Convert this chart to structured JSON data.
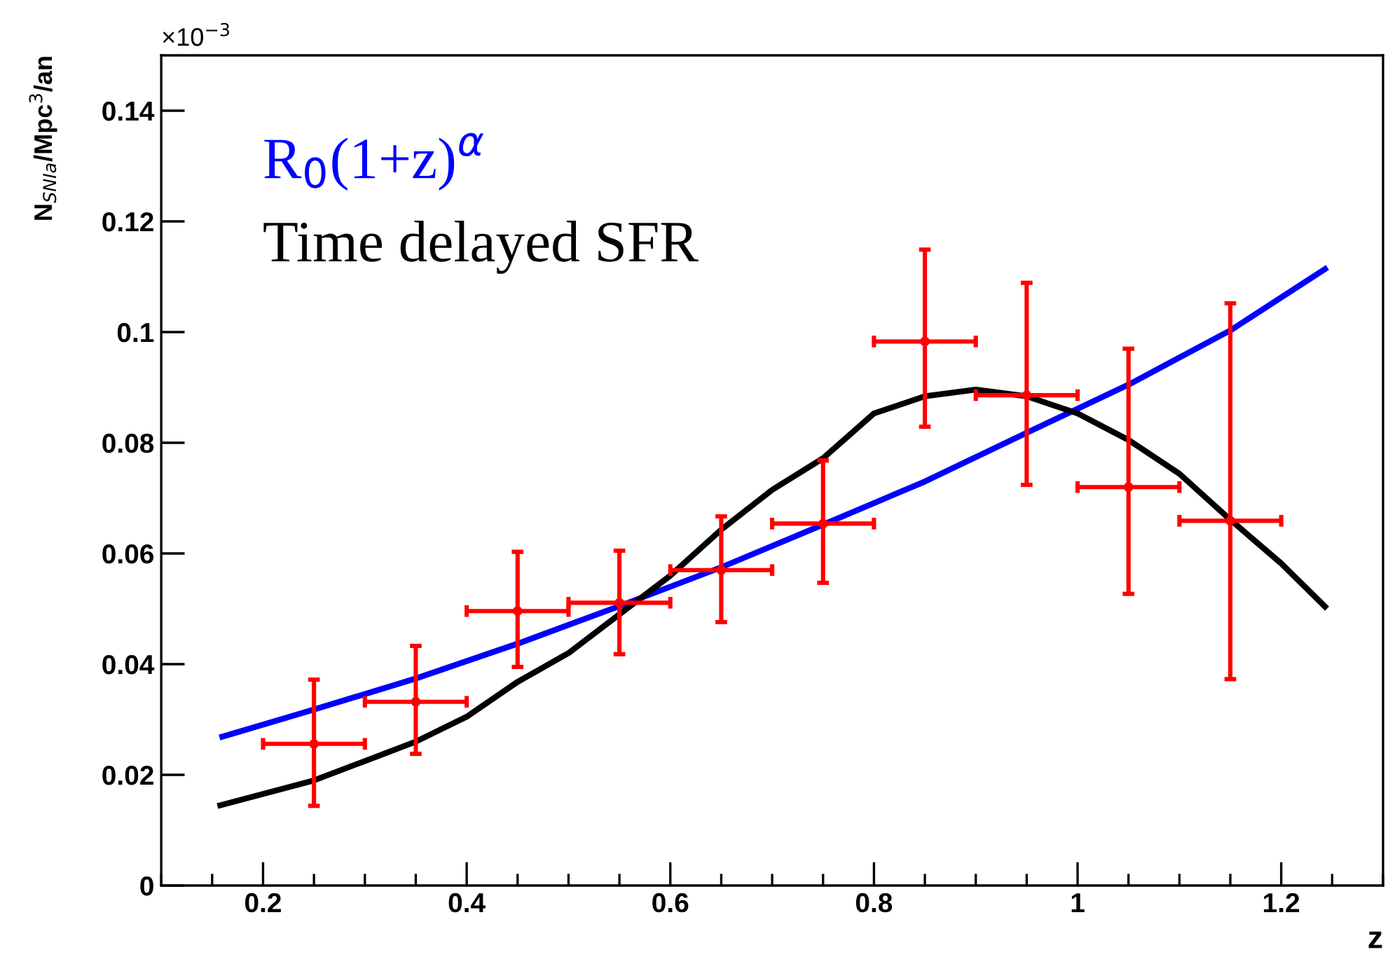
{
  "chart_data": {
    "type": "line",
    "xlabel": "z",
    "ylabel": "N$_{SNIa}$/Mpc$^{3}$/an",
    "xlim": [
      0.1,
      1.3
    ],
    "ylim": [
      0,
      0.15
    ],
    "xticks": [
      0.2,
      0.4,
      0.6,
      0.8,
      1,
      1.2
    ],
    "yticks": [
      0,
      0.02,
      0.04,
      0.06,
      0.08,
      0.1,
      0.12,
      0.14
    ],
    "grid": false,
    "legend": "top left",
    "marker": "none",
    "line_style": "solid",
    "annotations": [
      "×10$^{−3}$"
    ],
    "series": [
      {
        "name": "R$_{0}$(1+z)$^{α}$",
        "color": "#0000ff",
        "x": [
          0.16,
          0.25,
          0.35,
          0.45,
          0.55,
          0.65,
          0.75,
          0.85,
          0.95,
          1.05,
          1.15,
          1.243
        ],
        "values": [
          0.0269,
          0.0318,
          0.0374,
          0.0437,
          0.0505,
          0.0575,
          0.0652,
          0.073,
          0.0818,
          0.0905,
          0.1003,
          0.1114
        ]
      },
      {
        "name": "Time delayed SFR",
        "color": "#000000",
        "x": [
          0.158,
          0.25,
          0.3,
          0.35,
          0.4,
          0.45,
          0.5,
          0.55,
          0.6,
          0.65,
          0.7,
          0.75,
          0.8,
          0.85,
          0.9,
          0.95,
          1.0,
          1.05,
          1.1,
          1.15,
          1.2,
          1.243
        ],
        "values": [
          0.0145,
          0.019,
          0.0225,
          0.026,
          0.0305,
          0.0368,
          0.042,
          0.049,
          0.056,
          0.0643,
          0.0715,
          0.0772,
          0.0853,
          0.0884,
          0.0896,
          0.0884,
          0.0853,
          0.0805,
          0.0744,
          0.0661,
          0.0582,
          0.0504
        ]
      },
      {
        "color": "#ff0000",
        "type": "scatter",
        "marker": "circle",
        "x": [
          0.25,
          0.35,
          0.45,
          0.55,
          0.65,
          0.75,
          0.85,
          0.95,
          1.05,
          1.15
        ],
        "values": [
          0.0256,
          0.0332,
          0.0496,
          0.0511,
          0.057,
          0.0654,
          0.0983,
          0.0886,
          0.072,
          0.0659
        ],
        "errors": [
          [
            0.0144,
            0.0372
          ],
          [
            0.0238,
            0.0433
          ],
          [
            0.0395,
            0.0603
          ],
          [
            0.0418,
            0.0605
          ],
          [
            0.0476,
            0.0667
          ],
          [
            0.0547,
            0.0768
          ],
          [
            0.0829,
            0.1149
          ],
          [
            0.0724,
            0.1089
          ],
          [
            0.0527,
            0.097
          ],
          [
            0.0373,
            0.1052
          ]
        ],
        "xerrors": [
          0.05,
          0.05,
          0.05,
          0.05,
          0.05,
          0.05,
          0.05,
          0.05,
          0.05,
          0.05
        ]
      }
    ]
  }
}
